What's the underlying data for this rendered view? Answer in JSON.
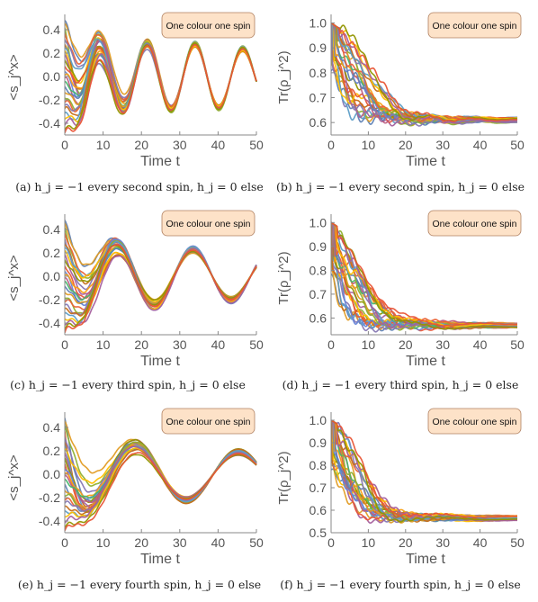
{
  "colors": {
    "palette": [
      "#5e81b5",
      "#e19c24",
      "#8fb032",
      "#eb6235",
      "#8778b3",
      "#c56e1a",
      "#5d9ec7",
      "#ffbf00",
      "#a5609d",
      "#929600",
      "#e95536",
      "#6685d9",
      "#f89f13",
      "#bc5b80",
      "#47b66d"
    ],
    "legend_fill": "#fde2c8",
    "legend_stroke": "#b08060",
    "axis": "#888888"
  },
  "chart_data": [
    {
      "type": "line",
      "panel": "a",
      "ylabel": "<s_j^x>",
      "xlabel": "Time t",
      "xlim": [
        0,
        50
      ],
      "ylim": [
        -0.5,
        0.5
      ],
      "xticks": [
        0,
        10,
        20,
        30,
        40,
        50
      ],
      "yticks": [
        -0.4,
        -0.2,
        0.0,
        0.2,
        0.4
      ],
      "ytick_labels": [
        "-0.4",
        "-0.2",
        "0.0",
        "0.2",
        "0.4"
      ],
      "legend": "One colour one spin",
      "legend_position": "top-right",
      "caption": "(a) h_j = −1 every second spin, h_j = 0 else",
      "series_count": 26,
      "envelope": {
        "description": "oscillations of all spins around 0, starting between -0.5 and 0.5",
        "period": 12.5,
        "amplitude": [
          [
            0,
            0.45
          ],
          [
            10,
            0.34
          ],
          [
            20,
            0.29
          ],
          [
            30,
            0.28
          ],
          [
            40,
            0.27
          ],
          [
            50,
            0.22
          ]
        ],
        "peaks": [
          [
            9,
            0.36
          ],
          [
            21.5,
            0.29
          ],
          [
            34.5,
            0.29
          ],
          [
            47,
            0.23
          ]
        ],
        "troughs": [
          [
            15,
            -0.3
          ],
          [
            28,
            -0.27
          ],
          [
            40.5,
            -0.24
          ]
        ]
      }
    },
    {
      "type": "line",
      "panel": "b",
      "ylabel": "Tr(ρ_j^2)",
      "xlabel": "Time t",
      "xlim": [
        0,
        50
      ],
      "ylim": [
        0.55,
        1.02
      ],
      "xticks": [
        0,
        10,
        20,
        30,
        40,
        50
      ],
      "yticks": [
        0.6,
        0.7,
        0.8,
        0.9,
        1.0
      ],
      "ytick_labels": [
        "0.6",
        "0.7",
        "0.8",
        "0.9",
        "1.0"
      ],
      "legend": "One colour one spin",
      "legend_position": "top-right",
      "caption": "(b) h_j = −1 every second spin, h_j = 0 else",
      "series_count": 26,
      "envelope": {
        "description": "purity decays from 1.0 to about 0.61 at t=50",
        "start": 1.0,
        "end": 0.61,
        "lowest_early": 0.58
      }
    },
    {
      "type": "line",
      "panel": "c",
      "ylabel": "<s_j^x>",
      "xlabel": "Time t",
      "xlim": [
        0,
        50
      ],
      "ylim": [
        -0.5,
        0.5
      ],
      "xticks": [
        0,
        10,
        20,
        30,
        40,
        50
      ],
      "yticks": [
        -0.4,
        -0.2,
        0.0,
        0.2,
        0.4
      ],
      "ytick_labels": [
        "-0.4",
        "-0.2",
        "0.0",
        "0.2",
        "0.4"
      ],
      "legend": "One colour one spin",
      "legend_position": "top-right",
      "caption": "(c) h_j = −1 every third spin, h_j = 0 else",
      "series_count": 26,
      "envelope": {
        "description": "oscillations of all spins around 0",
        "period": 20,
        "peaks": [
          [
            13.5,
            0.32
          ],
          [
            33.5,
            0.24
          ]
        ],
        "troughs": [
          [
            23.5,
            -0.24
          ],
          [
            44,
            -0.19
          ]
        ]
      }
    },
    {
      "type": "line",
      "panel": "d",
      "ylabel": "Tr(ρ_j^2)",
      "xlabel": "Time t",
      "xlim": [
        0,
        50
      ],
      "ylim": [
        0.53,
        1.02
      ],
      "xticks": [
        0,
        10,
        20,
        30,
        40,
        50
      ],
      "yticks": [
        0.6,
        0.7,
        0.8,
        0.9,
        1.0
      ],
      "ytick_labels": [
        "0.6",
        "0.7",
        "0.8",
        "0.9",
        "1.0"
      ],
      "legend": "One colour one spin",
      "legend_position": "top-right",
      "caption": "(d) h_j = −1 every third spin, h_j = 0 else",
      "series_count": 26,
      "envelope": {
        "description": "purity decays from 1.0 to about 0.57 at t=50",
        "start": 1.0,
        "end": 0.57
      }
    },
    {
      "type": "line",
      "panel": "e",
      "ylabel": "<s_j^x>",
      "xlabel": "Time t",
      "xlim": [
        0,
        50
      ],
      "ylim": [
        -0.5,
        0.5
      ],
      "xticks": [
        0,
        10,
        20,
        30,
        40,
        50
      ],
      "yticks": [
        -0.4,
        -0.2,
        0.0,
        0.2,
        0.4
      ],
      "ytick_labels": [
        "-0.4",
        "-0.2",
        "0.0",
        "0.2",
        "0.4"
      ],
      "legend": "One colour one spin",
      "legend_position": "top-right",
      "caption": "(e) h_j = −1 every fourth spin, h_j = 0 else",
      "series_count": 26,
      "envelope": {
        "description": "oscillations of all spins around 0",
        "period": 27,
        "peaks": [
          [
            18.5,
            0.27
          ],
          [
            45.5,
            0.18
          ]
        ],
        "troughs": [
          [
            32,
            -0.2
          ]
        ]
      }
    },
    {
      "type": "line",
      "panel": "f",
      "ylabel": "Tr(ρ_j^2)",
      "xlabel": "Time t",
      "xlim": [
        0,
        50
      ],
      "ylim": [
        0.5,
        1.02
      ],
      "xticks": [
        0,
        10,
        20,
        30,
        40,
        50
      ],
      "yticks": [
        0.5,
        0.6,
        0.7,
        0.8,
        0.9,
        1.0
      ],
      "ytick_labels": [
        "0.5",
        "0.6",
        "0.7",
        "0.8",
        "0.9",
        "1.0"
      ],
      "legend": "One colour one spin",
      "legend_position": "top-right",
      "caption": "(f) h_j = −1 every fourth spin, h_j = 0 else",
      "series_count": 26,
      "envelope": {
        "description": "purity decays from 1.0 to about 0.57 at t=50",
        "start": 1.0,
        "end": 0.57
      }
    }
  ]
}
